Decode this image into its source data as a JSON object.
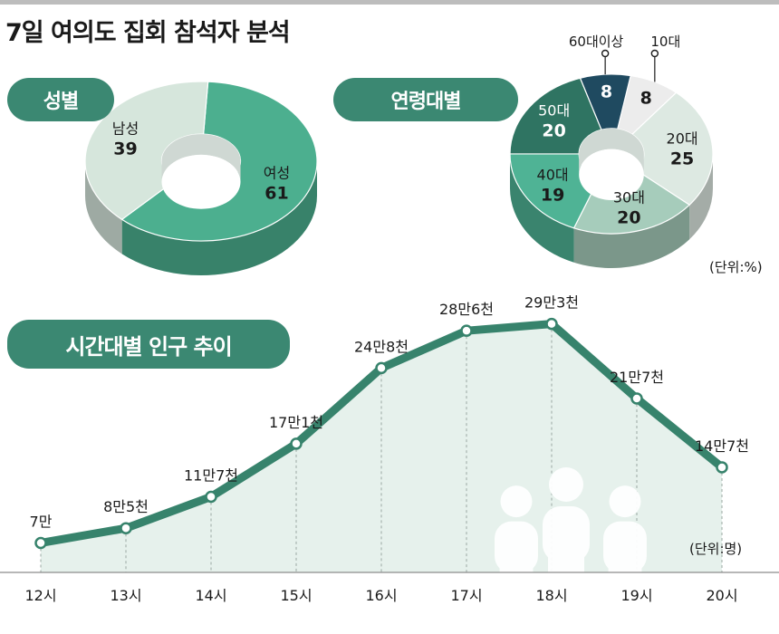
{
  "title": "7일 여의도 집회 참석자 분석",
  "pills": {
    "gender": "성별",
    "age": "연령대별",
    "time": "시간대별 인구 추이"
  },
  "units": {
    "percent": "(단위:%)",
    "person": "(단위:명)"
  },
  "colors": {
    "accent": "#3b8872",
    "line": "#37836c",
    "area": "#e6f1ec",
    "dark_navy": "#1f4a60",
    "light": "#e8ece9"
  },
  "chart_data": [
    {
      "type": "pie",
      "title": "성별",
      "slices": [
        {
          "label": "여성",
          "value": 61,
          "value_label": "61",
          "color": "#4caf8f"
        },
        {
          "label": "남성",
          "value": 39,
          "value_label": "39",
          "color": "#d6e6dc"
        }
      ]
    },
    {
      "type": "pie",
      "title": "연령대별",
      "unit": "(단위:%)",
      "slices": [
        {
          "label": "10대",
          "value": 8,
          "value_label": "8",
          "color": "#ececec"
        },
        {
          "label": "20대",
          "value": 25,
          "value_label": "25",
          "color": "#dde9e2"
        },
        {
          "label": "30대",
          "value": 20,
          "value_label": "20",
          "color": "#a6ccbb"
        },
        {
          "label": "40대",
          "value": 19,
          "value_label": "19",
          "color": "#4fb395"
        },
        {
          "label": "50대",
          "value": 20,
          "value_label": "20",
          "color": "#2f7462"
        },
        {
          "label": "60대이상",
          "value": 8,
          "value_label": "8",
          "color": "#1f4a60"
        }
      ]
    },
    {
      "type": "line",
      "title": "시간대별 인구 추이",
      "unit": "(단위:명)",
      "x": [
        "12시",
        "13시",
        "14시",
        "15시",
        "16시",
        "17시",
        "18시",
        "19시",
        "20시"
      ],
      "values": [
        70000,
        85000,
        117000,
        171000,
        248000,
        286000,
        293000,
        217000,
        147000
      ],
      "value_labels": [
        "7만",
        "8만5천",
        "11만7천",
        "17만1천",
        "24만8천",
        "28만6천",
        "29만3천",
        "21만7천",
        "14만7천"
      ],
      "ylim": [
        40000,
        300000
      ]
    }
  ]
}
